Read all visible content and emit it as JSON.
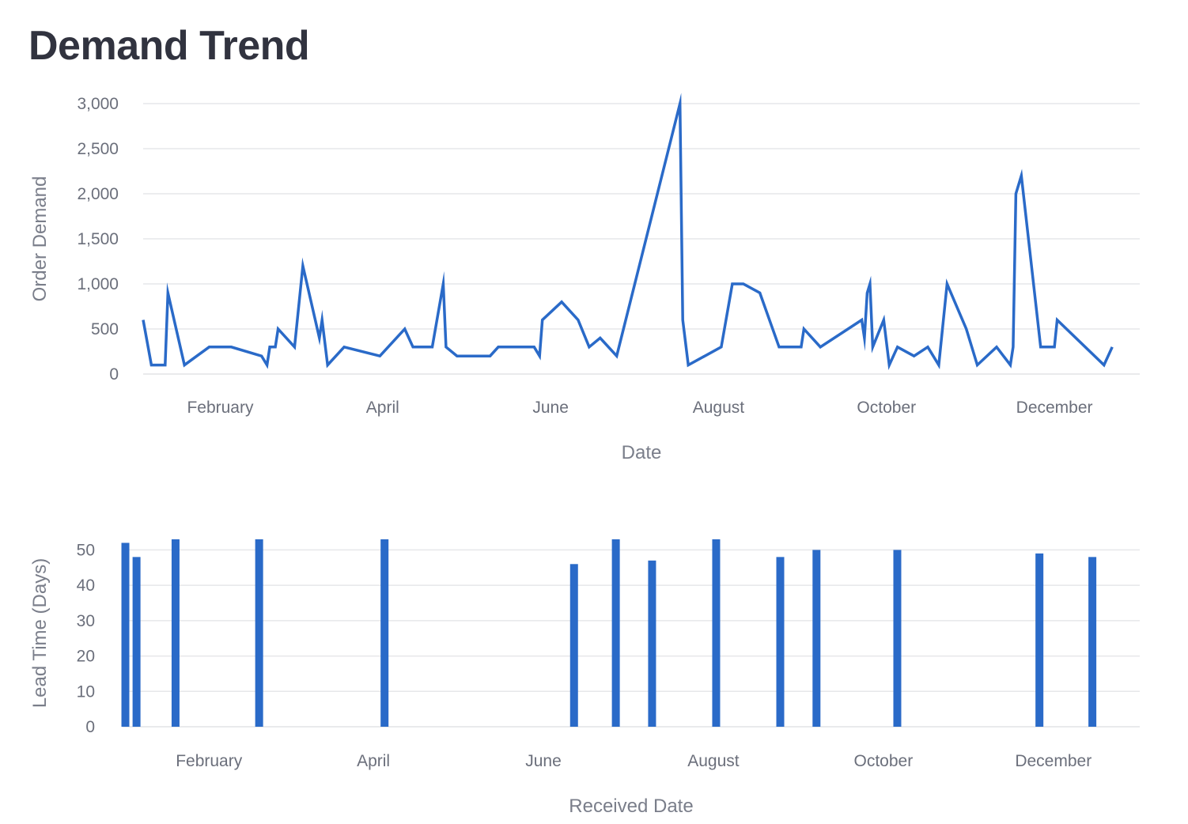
{
  "title": "Demand Trend",
  "colors": {
    "series": "#2a6ac8",
    "grid": "#e6e7ea",
    "text": "#6b6f7b",
    "title": "#31333f"
  },
  "chart_data": [
    {
      "type": "line",
      "xlabel": "Date",
      "ylabel": "Order Demand",
      "ylim": [
        0,
        3000
      ],
      "xlim": [
        "2017-01-04",
        "2017-12-31"
      ],
      "y_ticks": [
        0,
        500,
        1000,
        1500,
        2000,
        2500,
        3000
      ],
      "y_tick_labels": [
        "0",
        "500",
        "1,000",
        "1,500",
        "2,000",
        "2,500",
        "3,000"
      ],
      "x_ticks": [
        "2017-02-01",
        "2017-04-01",
        "2017-06-01",
        "2017-08-01",
        "2017-10-01",
        "2017-12-01"
      ],
      "x_tick_labels": [
        "February",
        "April",
        "June",
        "August",
        "October",
        "December"
      ],
      "grid": true,
      "series": [
        {
          "x": [
            "2017-01-04",
            "2017-01-07",
            "2017-01-12",
            "2017-01-13",
            "2017-01-19",
            "2017-01-28",
            "2017-02-05",
            "2017-02-16",
            "2017-02-18",
            "2017-02-19",
            "2017-02-21",
            "2017-02-22",
            "2017-02-28",
            "2017-03-03",
            "2017-03-09",
            "2017-03-10",
            "2017-03-12",
            "2017-03-18",
            "2017-03-31",
            "2017-04-09",
            "2017-04-12",
            "2017-04-19",
            "2017-04-23",
            "2017-04-24",
            "2017-04-28",
            "2017-05-10",
            "2017-05-13",
            "2017-05-26",
            "2017-05-28",
            "2017-05-29",
            "2017-06-05",
            "2017-06-11",
            "2017-06-15",
            "2017-06-19",
            "2017-06-25",
            "2017-07-18",
            "2017-07-19",
            "2017-07-21",
            "2017-08-02",
            "2017-08-06",
            "2017-08-10",
            "2017-08-16",
            "2017-08-23",
            "2017-08-31",
            "2017-09-01",
            "2017-09-07",
            "2017-09-22",
            "2017-09-23",
            "2017-09-24",
            "2017-09-25",
            "2017-09-26",
            "2017-09-30",
            "2017-10-02",
            "2017-10-05",
            "2017-10-11",
            "2017-10-16",
            "2017-10-20",
            "2017-10-23",
            "2017-10-30",
            "2017-11-03",
            "2017-11-10",
            "2017-11-15",
            "2017-11-16",
            "2017-11-17",
            "2017-11-19",
            "2017-11-26",
            "2017-12-01",
            "2017-12-02",
            "2017-12-19",
            "2017-12-22"
          ],
          "y": [
            600,
            100,
            100,
            900,
            100,
            300,
            300,
            200,
            100,
            300,
            300,
            500,
            300,
            1200,
            400,
            600,
            100,
            300,
            200,
            500,
            300,
            300,
            1000,
            300,
            200,
            200,
            300,
            300,
            200,
            600,
            800,
            600,
            300,
            400,
            200,
            3000,
            600,
            100,
            300,
            1000,
            1000,
            900,
            300,
            300,
            500,
            300,
            600,
            400,
            900,
            1000,
            300,
            600,
            100,
            300,
            200,
            300,
            100,
            1000,
            500,
            100,
            300,
            100,
            300,
            2000,
            2200,
            300,
            300,
            600,
            100,
            300
          ]
        }
      ]
    },
    {
      "type": "bar",
      "xlabel": "Received Date",
      "ylabel": "Lead Time (Days)",
      "ylim": [
        0,
        53
      ],
      "xlim": [
        "2017-01-01",
        "2017-12-31"
      ],
      "y_ticks": [
        0,
        10,
        20,
        30,
        40,
        50
      ],
      "y_tick_labels": [
        "0",
        "10",
        "20",
        "30",
        "40",
        "50"
      ],
      "x_ticks": [
        "2017-02-01",
        "2017-04-01",
        "2017-06-01",
        "2017-08-01",
        "2017-10-01",
        "2017-12-01"
      ],
      "x_tick_labels": [
        "February",
        "April",
        "June",
        "August",
        "October",
        "December"
      ],
      "grid": true,
      "series": [
        {
          "x": [
            "2017-01-02",
            "2017-01-06",
            "2017-01-20",
            "2017-02-19",
            "2017-04-05",
            "2017-06-12",
            "2017-06-27",
            "2017-07-10",
            "2017-08-02",
            "2017-08-25",
            "2017-09-07",
            "2017-10-06",
            "2017-11-26",
            "2017-12-15"
          ],
          "y": [
            52,
            48,
            53,
            53,
            53,
            46,
            53,
            47,
            53,
            48,
            50,
            50,
            49,
            48
          ]
        }
      ]
    }
  ]
}
